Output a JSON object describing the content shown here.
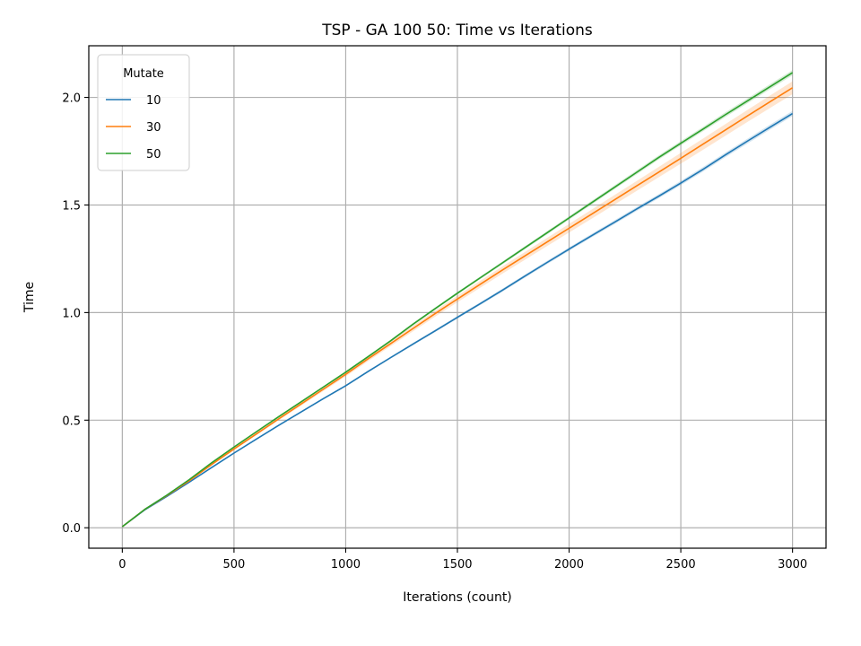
{
  "chart_data": {
    "type": "line",
    "title": "TSP - GA 100 50: Time vs Iterations",
    "xlabel": "Iterations (count)",
    "ylabel": "Time",
    "xlim": [
      -150,
      3150
    ],
    "ylim": [
      -0.095,
      2.24
    ],
    "xticks": [
      0,
      500,
      1000,
      1500,
      2000,
      2500,
      3000
    ],
    "xtick_labels": [
      "0",
      "500",
      "1000",
      "1500",
      "2000",
      "2500",
      "3000"
    ],
    "yticks": [
      0.0,
      0.5,
      1.0,
      1.5,
      2.0
    ],
    "ytick_labels": [
      "0.0",
      "0.5",
      "1.0",
      "1.5",
      "2.0"
    ],
    "grid": true,
    "legend": {
      "title": "Mutate",
      "placement": "top-left"
    },
    "x": [
      0,
      100,
      200,
      300,
      400,
      500,
      600,
      700,
      800,
      900,
      1000,
      1100,
      1200,
      1300,
      1400,
      1500,
      1600,
      1700,
      1800,
      1900,
      2000,
      2100,
      2200,
      2300,
      2400,
      2500,
      2600,
      2700,
      2800,
      2900,
      3000
    ],
    "series": [
      {
        "name": "10",
        "color": "#1f77b4",
        "values": [
          0.005,
          0.083,
          0.146,
          0.212,
          0.28,
          0.347,
          0.412,
          0.476,
          0.538,
          0.6,
          0.66,
          0.726,
          0.79,
          0.853,
          0.915,
          0.978,
          1.04,
          1.103,
          1.168,
          1.232,
          1.295,
          1.357,
          1.418,
          1.48,
          1.54,
          1.602,
          1.666,
          1.733,
          1.798,
          1.862,
          1.925
        ],
        "band": 0.012
      },
      {
        "name": "30",
        "color": "#ff7f0e",
        "values": [
          0.005,
          0.085,
          0.15,
          0.219,
          0.294,
          0.366,
          0.436,
          0.506,
          0.575,
          0.644,
          0.713,
          0.785,
          0.855,
          0.925,
          0.995,
          1.063,
          1.13,
          1.197,
          1.262,
          1.327,
          1.392,
          1.457,
          1.522,
          1.587,
          1.652,
          1.717,
          1.783,
          1.849,
          1.915,
          1.98,
          2.045
        ],
        "band": 0.03
      },
      {
        "name": "50",
        "color": "#2ca02c",
        "values": [
          0.005,
          0.085,
          0.152,
          0.224,
          0.302,
          0.375,
          0.446,
          0.516,
          0.585,
          0.654,
          0.723,
          0.795,
          0.868,
          0.945,
          1.018,
          1.09,
          1.16,
          1.23,
          1.3,
          1.37,
          1.44,
          1.51,
          1.58,
          1.65,
          1.72,
          1.787,
          1.853,
          1.92,
          1.985,
          2.05,
          2.115
        ],
        "band": 0.012
      }
    ]
  }
}
